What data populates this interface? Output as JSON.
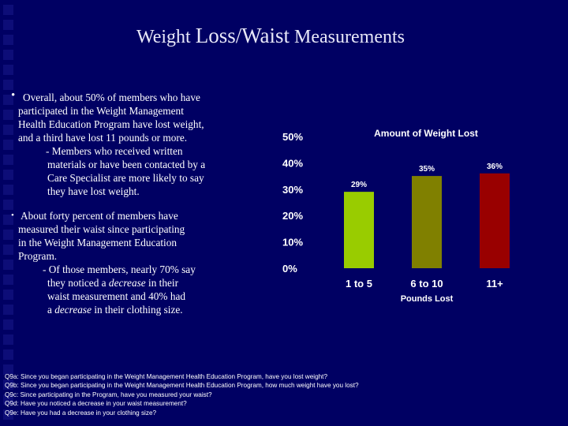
{
  "title": {
    "part1": "Weight ",
    "part2": "Loss/Waist",
    "part3": " Measurements"
  },
  "bullet1": {
    "marker": "•",
    "lines": [
      "Overall, about 50% of members who have",
      "participated in the Weight Management",
      "Health Education Program have lost weight,",
      "and a third have lost 11 pounds or more.",
      "- Members who received written",
      "materials or have been contacted by a",
      "Care Specialist are more likely to say",
      "they have lost weight."
    ]
  },
  "bullet2": {
    "marker": "•",
    "lines": [
      "About forty percent of members have",
      "measured their waist since participating",
      "in the Weight Management Education",
      "Program.",
      "- Of those members, nearly 70% say",
      "they noticed a",
      "decrease",
      "in their",
      "waist measurement and 40% had",
      "a",
      "decrease",
      "in their clothing size."
    ]
  },
  "footnotes": [
    "Q9a: Since you began participating in the Weight Management Health Education Program, have you lost weight?",
    "Q9b: Since you began participating in the Weight Management Health Education Program, how much weight have you lost?",
    "Q9c: Since participating in the Program, have you measured your waist?",
    "Q9d: Have you noticed a decrease in your waist measurement?",
    "Q9e: Have you had a decrease in your clothing size?"
  ],
  "chart_data": {
    "type": "bar",
    "title": "Amount of Weight Lost",
    "xlabel": "Pounds Lost",
    "ylabel": "",
    "categories": [
      "1 to 5",
      "6 to 10",
      "11+"
    ],
    "values": [
      29,
      35,
      36
    ],
    "value_labels": [
      "29%",
      "35%",
      "36%"
    ],
    "bar_colors": [
      "#99cc00",
      "#808000",
      "#990000"
    ],
    "yticks": [
      "0%",
      "10%",
      "20%",
      "30%",
      "40%",
      "50%"
    ],
    "ylim": [
      0,
      50
    ],
    "grid": false,
    "legend": "none"
  }
}
